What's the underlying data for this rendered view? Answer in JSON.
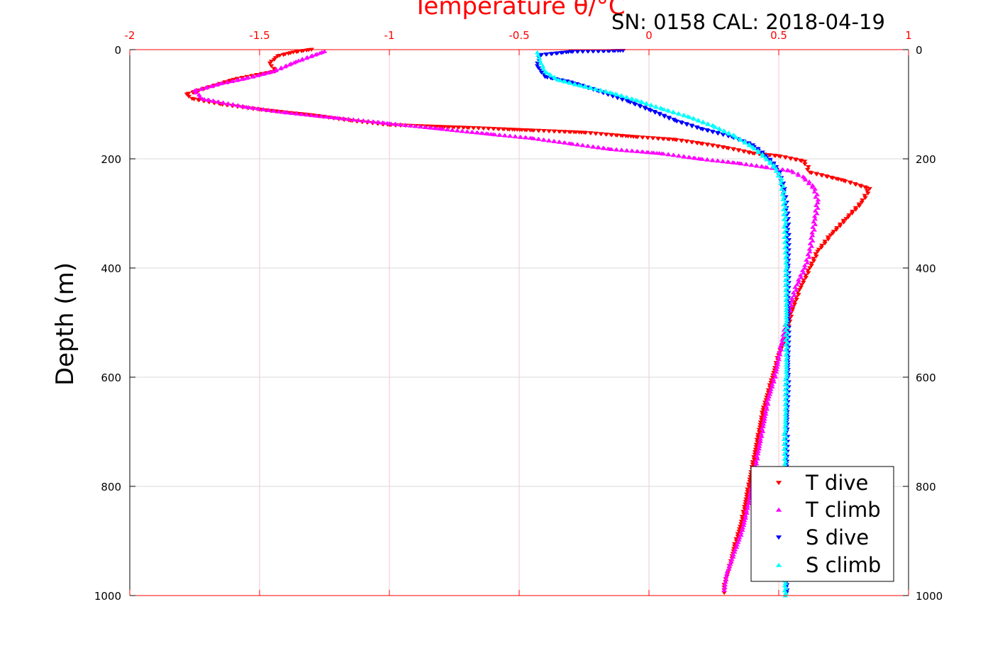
{
  "chart_data": {
    "type": "scatter",
    "title": "SN: 0158  CAL: 2018-04-19",
    "xlabel": "Temperature θ/°C",
    "ylabel": "Depth (m)",
    "xlim": [
      -2,
      1
    ],
    "ylim": [
      1000,
      0
    ],
    "x_ticks": [
      "-2",
      "-1.5",
      "-1",
      "-0.5",
      "0",
      "0.5",
      "1"
    ],
    "y_ticks": [
      "0",
      "200",
      "400",
      "600",
      "800",
      "1000"
    ],
    "x_axis_position": "top",
    "y_axis_reversed": true,
    "grid": true,
    "legend": {
      "placement": "bottom-right",
      "entries": [
        "T dive",
        "T climb",
        "S dive",
        "S climb"
      ]
    },
    "colors": {
      "t_dive": "#ff0000",
      "t_climb": "#ff00ff",
      "s_dive": "#0000ff",
      "s_climb": "#00ffff",
      "axis_x": "#ff0000",
      "grid_x": "#f5c6cb",
      "grid_y": "#d9d9d9"
    },
    "series": [
      {
        "name": "T dive",
        "marker": "triangle-down",
        "color": "#ff0000",
        "points": [
          [
            -1.3,
            0
          ],
          [
            -1.37,
            5
          ],
          [
            -1.43,
            12
          ],
          [
            -1.46,
            25
          ],
          [
            -1.44,
            40
          ],
          [
            -1.6,
            55
          ],
          [
            -1.7,
            70
          ],
          [
            -1.78,
            82
          ],
          [
            -1.76,
            90
          ],
          [
            -1.65,
            100
          ],
          [
            -1.5,
            110
          ],
          [
            -1.3,
            120
          ],
          [
            -1.15,
            130
          ],
          [
            -1.0,
            138
          ],
          [
            -0.7,
            143
          ],
          [
            -0.45,
            148
          ],
          [
            -0.25,
            152
          ],
          [
            -0.05,
            160
          ],
          [
            0.1,
            165
          ],
          [
            0.2,
            172
          ],
          [
            0.3,
            180
          ],
          [
            0.4,
            190
          ],
          [
            0.5,
            195
          ],
          [
            0.6,
            205
          ],
          [
            0.62,
            225
          ],
          [
            0.75,
            240
          ],
          [
            0.85,
            255
          ],
          [
            0.82,
            280
          ],
          [
            0.76,
            310
          ],
          [
            0.7,
            340
          ],
          [
            0.65,
            370
          ],
          [
            0.62,
            400
          ],
          [
            0.58,
            440
          ],
          [
            0.55,
            480
          ],
          [
            0.53,
            520
          ],
          [
            0.5,
            560
          ],
          [
            0.47,
            610
          ],
          [
            0.44,
            660
          ],
          [
            0.42,
            710
          ],
          [
            0.4,
            760
          ],
          [
            0.38,
            810
          ],
          [
            0.36,
            860
          ],
          [
            0.33,
            910
          ],
          [
            0.31,
            950
          ],
          [
            0.29,
            980
          ],
          [
            0.29,
            995
          ]
        ]
      },
      {
        "name": "T climb",
        "marker": "triangle-up",
        "color": "#ff00ff",
        "points": [
          [
            -1.25,
            3
          ],
          [
            -1.35,
            20
          ],
          [
            -1.45,
            40
          ],
          [
            -1.55,
            52
          ],
          [
            -1.65,
            62
          ],
          [
            -1.75,
            75
          ],
          [
            -1.72,
            90
          ],
          [
            -1.55,
            105
          ],
          [
            -1.4,
            115
          ],
          [
            -1.2,
            125
          ],
          [
            -1.0,
            135
          ],
          [
            -0.8,
            145
          ],
          [
            -0.6,
            155
          ],
          [
            -0.45,
            162
          ],
          [
            -0.3,
            172
          ],
          [
            -0.15,
            182
          ],
          [
            0.05,
            190
          ],
          [
            0.2,
            200
          ],
          [
            0.35,
            208
          ],
          [
            0.45,
            215
          ],
          [
            0.55,
            222
          ],
          [
            0.6,
            235
          ],
          [
            0.64,
            255
          ],
          [
            0.65,
            280
          ],
          [
            0.64,
            310
          ],
          [
            0.63,
            340
          ],
          [
            0.62,
            370
          ],
          [
            0.6,
            400
          ],
          [
            0.57,
            430
          ],
          [
            0.55,
            460
          ],
          [
            0.53,
            500
          ],
          [
            0.51,
            540
          ],
          [
            0.49,
            590
          ],
          [
            0.46,
            640
          ],
          [
            0.44,
            690
          ],
          [
            0.42,
            740
          ],
          [
            0.4,
            790
          ],
          [
            0.38,
            840
          ],
          [
            0.36,
            880
          ],
          [
            0.33,
            920
          ],
          [
            0.3,
            960
          ],
          [
            0.29,
            990
          ]
        ]
      },
      {
        "name": "S dive",
        "marker": "triangle-down",
        "color": "#0000ff",
        "points": [
          [
            -0.1,
            2
          ],
          [
            -0.3,
            4
          ],
          [
            -0.42,
            10
          ],
          [
            -0.43,
            30
          ],
          [
            -0.4,
            50
          ],
          [
            -0.3,
            60
          ],
          [
            -0.2,
            75
          ],
          [
            -0.08,
            95
          ],
          [
            0.0,
            110
          ],
          [
            0.1,
            130
          ],
          [
            0.2,
            145
          ],
          [
            0.32,
            160
          ],
          [
            0.4,
            175
          ],
          [
            0.45,
            195
          ],
          [
            0.49,
            215
          ],
          [
            0.51,
            235
          ],
          [
            0.52,
            260
          ],
          [
            0.53,
            290
          ],
          [
            0.535,
            330
          ],
          [
            0.535,
            400
          ],
          [
            0.535,
            500
          ],
          [
            0.535,
            600
          ],
          [
            0.53,
            700
          ],
          [
            0.53,
            800
          ],
          [
            0.53,
            900
          ],
          [
            0.53,
            995
          ]
        ]
      },
      {
        "name": "S climb",
        "marker": "triangle-up",
        "color": "#00ffff",
        "points": [
          [
            -0.43,
            5
          ],
          [
            -0.42,
            20
          ],
          [
            -0.4,
            40
          ],
          [
            -0.35,
            55
          ],
          [
            -0.27,
            65
          ],
          [
            -0.15,
            78
          ],
          [
            -0.05,
            92
          ],
          [
            0.05,
            108
          ],
          [
            0.15,
            122
          ],
          [
            0.25,
            140
          ],
          [
            0.33,
            158
          ],
          [
            0.4,
            178
          ],
          [
            0.45,
            198
          ],
          [
            0.49,
            218
          ],
          [
            0.51,
            240
          ],
          [
            0.52,
            270
          ],
          [
            0.525,
            320
          ],
          [
            0.53,
            400
          ],
          [
            0.53,
            500
          ],
          [
            0.53,
            600
          ],
          [
            0.525,
            700
          ],
          [
            0.525,
            800
          ],
          [
            0.525,
            900
          ],
          [
            0.525,
            1000
          ]
        ]
      }
    ]
  }
}
